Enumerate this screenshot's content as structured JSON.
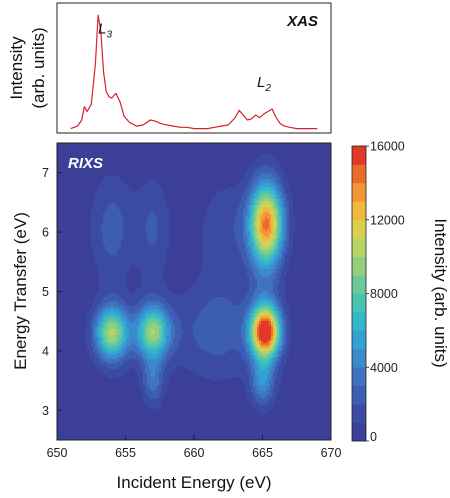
{
  "chart_data": [
    {
      "type": "line",
      "title": "XAS",
      "xlabel": "",
      "ylabel": "Intensity (arb. units)",
      "ylabel_lines": [
        "Intensity",
        "(arb. units)"
      ],
      "xlim": [
        650,
        670
      ],
      "line_color": "#d6202c",
      "annotations": [
        {
          "letter": "L",
          "sub": "3",
          "x": 653.0,
          "y": 0.8
        },
        {
          "letter": "L",
          "sub": "2",
          "x": 664.6,
          "y": 0.36
        }
      ],
      "x": [
        651.0,
        651.5,
        651.8,
        652.0,
        652.2,
        652.5,
        652.8,
        653.0,
        653.2,
        653.4,
        653.6,
        653.8,
        654.0,
        654.3,
        654.6,
        654.9,
        655.3,
        655.8,
        656.3,
        656.8,
        657.2,
        657.6,
        658.0,
        658.5,
        659.0,
        659.5,
        660.0,
        660.5,
        661.0,
        661.5,
        662.0,
        662.5,
        663.0,
        663.3,
        663.6,
        663.9,
        664.2,
        664.5,
        664.8,
        665.1,
        665.4,
        665.7,
        666.0,
        666.3,
        666.6,
        667.0,
        667.5,
        668.0,
        668.5,
        669.0
      ],
      "y": [
        0.02,
        0.04,
        0.09,
        0.2,
        0.16,
        0.22,
        0.55,
        0.95,
        0.82,
        0.48,
        0.32,
        0.28,
        0.27,
        0.31,
        0.24,
        0.12,
        0.07,
        0.04,
        0.05,
        0.09,
        0.08,
        0.06,
        0.05,
        0.04,
        0.03,
        0.03,
        0.02,
        0.02,
        0.02,
        0.03,
        0.04,
        0.05,
        0.11,
        0.17,
        0.13,
        0.09,
        0.1,
        0.13,
        0.11,
        0.14,
        0.16,
        0.18,
        0.11,
        0.06,
        0.04,
        0.03,
        0.02,
        0.02,
        0.02,
        0.02
      ]
    },
    {
      "type": "heatmap",
      "title": "RIXS",
      "xlabel": "Incident Energy (eV)",
      "ylabel": "Energy Transfer (eV)",
      "xlim": [
        650,
        670
      ],
      "ylim": [
        2.5,
        7.5
      ],
      "xticks": [
        650,
        655,
        660,
        665,
        670
      ],
      "yticks": [
        3,
        4,
        5,
        6,
        7
      ],
      "colorbar": {
        "label": "Intensity (arb. units)",
        "min": 0,
        "max": 16000,
        "ticks": [
          0,
          4000,
          8000,
          12000,
          16000
        ],
        "levels": 16,
        "colors": [
          "#3b3f97",
          "#3b4ba4",
          "#3d5db3",
          "#3f72c1",
          "#3b8acb",
          "#33a1d1",
          "#35b7c9",
          "#4bc3b2",
          "#6cc999",
          "#92cf7e",
          "#b6d564",
          "#d8d14f",
          "#efb940",
          "#f39435",
          "#ed6a2d",
          "#e13827"
        ]
      },
      "peaks": [
        {
          "x": 665.2,
          "y": 4.32,
          "intensity": 15600
        },
        {
          "x": 665.3,
          "y": 6.15,
          "intensity": 12600
        },
        {
          "x": 654.0,
          "y": 4.3,
          "intensity": 9200
        },
        {
          "x": 657.0,
          "y": 4.32,
          "intensity": 8600
        },
        {
          "x": 665.0,
          "y": 3.5,
          "intensity": 4000
        },
        {
          "x": 657.0,
          "y": 3.5,
          "intensity": 3000
        },
        {
          "x": 654.0,
          "y": 6.1,
          "intensity": 1700
        },
        {
          "x": 657.0,
          "y": 6.1,
          "intensity": 1500
        },
        {
          "x": 662.0,
          "y": 4.5,
          "intensity": 1400
        },
        {
          "x": 660.0,
          "y": 4.3,
          "intensity": 1200
        },
        {
          "x": 662.5,
          "y": 6.1,
          "intensity": 1500
        }
      ]
    }
  ]
}
